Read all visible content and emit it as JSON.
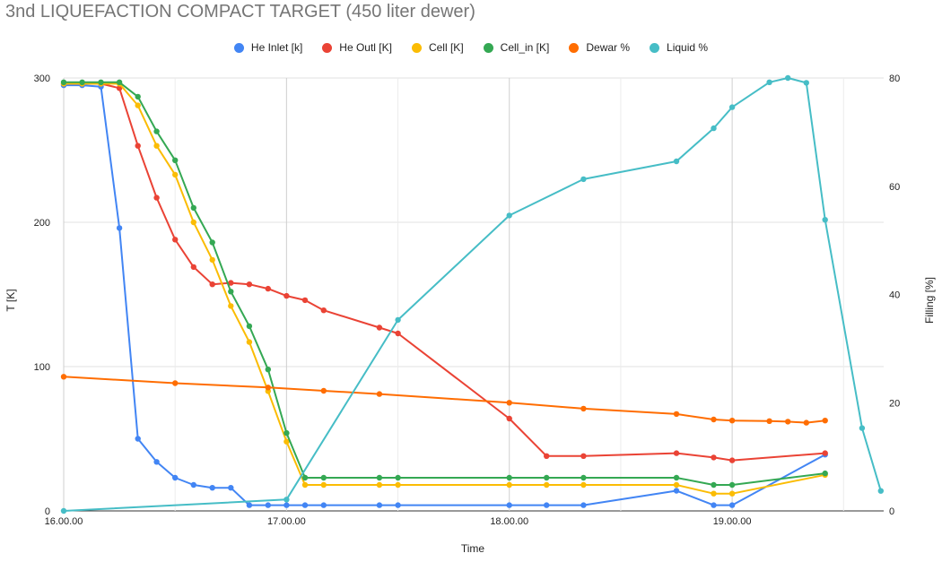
{
  "chart_data": {
    "type": "line",
    "title": "3nd LIQUEFACTION COMPACT TARGET (450 liter dewer)",
    "xlabel": "Time",
    "ylabel_left": "T [K]",
    "ylabel_right": "Filling [%]",
    "xlim": [
      16.0,
      19.68
    ],
    "ylim_left": [
      0,
      300
    ],
    "ylim_right": [
      0,
      80
    ],
    "x_ticks": [
      16.0,
      17.0,
      18.0,
      19.0
    ],
    "x_tick_labels": [
      "16.00.00",
      "17.00.00",
      "18.00.00",
      "19.00.00"
    ],
    "y_left_ticks": [
      0,
      100,
      200,
      300
    ],
    "y_left_tick_labels": [
      "0",
      "100",
      "200",
      "300"
    ],
    "y_right_ticks": [
      0,
      20,
      40,
      60,
      80
    ],
    "y_right_tick_labels": [
      "0",
      "20",
      "40",
      "60",
      "80"
    ],
    "legend_position": "top",
    "grid": "vertical",
    "series": [
      {
        "name": "He Inlet [k]",
        "color": "#4285f4",
        "axis": "left",
        "x": [
          16.0,
          16.083,
          16.167,
          16.25,
          16.333,
          16.417,
          16.5,
          16.583,
          16.667,
          16.75,
          16.833,
          16.917,
          17.0,
          17.083,
          17.167,
          17.417,
          17.5,
          18.0,
          18.167,
          18.333,
          18.75,
          18.917,
          19.0,
          19.417
        ],
        "values": [
          295,
          295,
          294,
          196,
          50,
          34,
          23,
          18,
          16,
          16,
          4,
          4,
          4,
          4,
          4,
          4,
          4,
          4,
          4,
          4,
          14,
          4,
          4,
          39
        ]
      },
      {
        "name": "He Outl [K]",
        "color": "#ea4335",
        "axis": "left",
        "x": [
          16.0,
          16.083,
          16.167,
          16.25,
          16.333,
          16.417,
          16.5,
          16.583,
          16.667,
          16.75,
          16.833,
          16.917,
          17.0,
          17.083,
          17.167,
          17.417,
          17.5,
          18.0,
          18.167,
          18.333,
          18.75,
          18.917,
          19.0,
          19.417
        ],
        "values": [
          296,
          296,
          296,
          293,
          253,
          217,
          188,
          169,
          157,
          158,
          157,
          154,
          149,
          146,
          139,
          127,
          123,
          64,
          38,
          38,
          40,
          37,
          35,
          40
        ]
      },
      {
        "name": "Cell [K]",
        "color": "#fbbc04",
        "axis": "left",
        "x": [
          16.0,
          16.083,
          16.167,
          16.25,
          16.333,
          16.417,
          16.5,
          16.583,
          16.667,
          16.75,
          16.833,
          16.917,
          17.0,
          17.083,
          17.167,
          17.417,
          17.5,
          18.0,
          18.167,
          18.333,
          18.75,
          18.917,
          19.0,
          19.417
        ],
        "values": [
          296,
          296,
          296,
          296,
          281,
          253,
          233,
          200,
          174,
          142,
          117,
          83,
          48,
          18,
          18,
          18,
          18,
          18,
          18,
          18,
          18,
          12,
          12,
          25
        ]
      },
      {
        "name": "Cell_in [K]",
        "color": "#34a853",
        "axis": "left",
        "x": [
          16.0,
          16.083,
          16.167,
          16.25,
          16.333,
          16.417,
          16.5,
          16.583,
          16.667,
          16.75,
          16.833,
          16.917,
          17.0,
          17.083,
          17.167,
          17.417,
          17.5,
          18.0,
          18.167,
          18.333,
          18.75,
          18.917,
          19.0,
          19.417
        ],
        "values": [
          297,
          297,
          297,
          297,
          287,
          263,
          243,
          210,
          186,
          152,
          128,
          98,
          54,
          23,
          23,
          23,
          23,
          23,
          23,
          23,
          23,
          18,
          18,
          26
        ]
      },
      {
        "name": "Dewar %",
        "color": "#ff6d01",
        "axis": "right",
        "x": [
          16.0,
          16.5,
          16.917,
          17.167,
          17.417,
          18.0,
          18.333,
          18.75,
          18.917,
          19.0,
          19.167,
          19.25,
          19.333,
          19.417
        ],
        "values": [
          24.8,
          23.6,
          22.8,
          22.2,
          21.6,
          20.0,
          18.9,
          17.9,
          16.9,
          16.7,
          16.6,
          16.5,
          16.3,
          16.7
        ]
      },
      {
        "name": "Liquid %",
        "color": "#46bdc6",
        "axis": "right",
        "x": [
          16.0,
          17.0,
          17.5,
          18.0,
          18.333,
          18.75,
          18.917,
          19.0,
          19.167,
          19.25,
          19.333,
          19.417,
          19.583,
          19.667
        ],
        "values": [
          0,
          2.1,
          35.3,
          54.6,
          61.3,
          64.6,
          70.7,
          74.6,
          79.2,
          80.0,
          79.1,
          53.8,
          15.3,
          3.7
        ]
      }
    ]
  }
}
